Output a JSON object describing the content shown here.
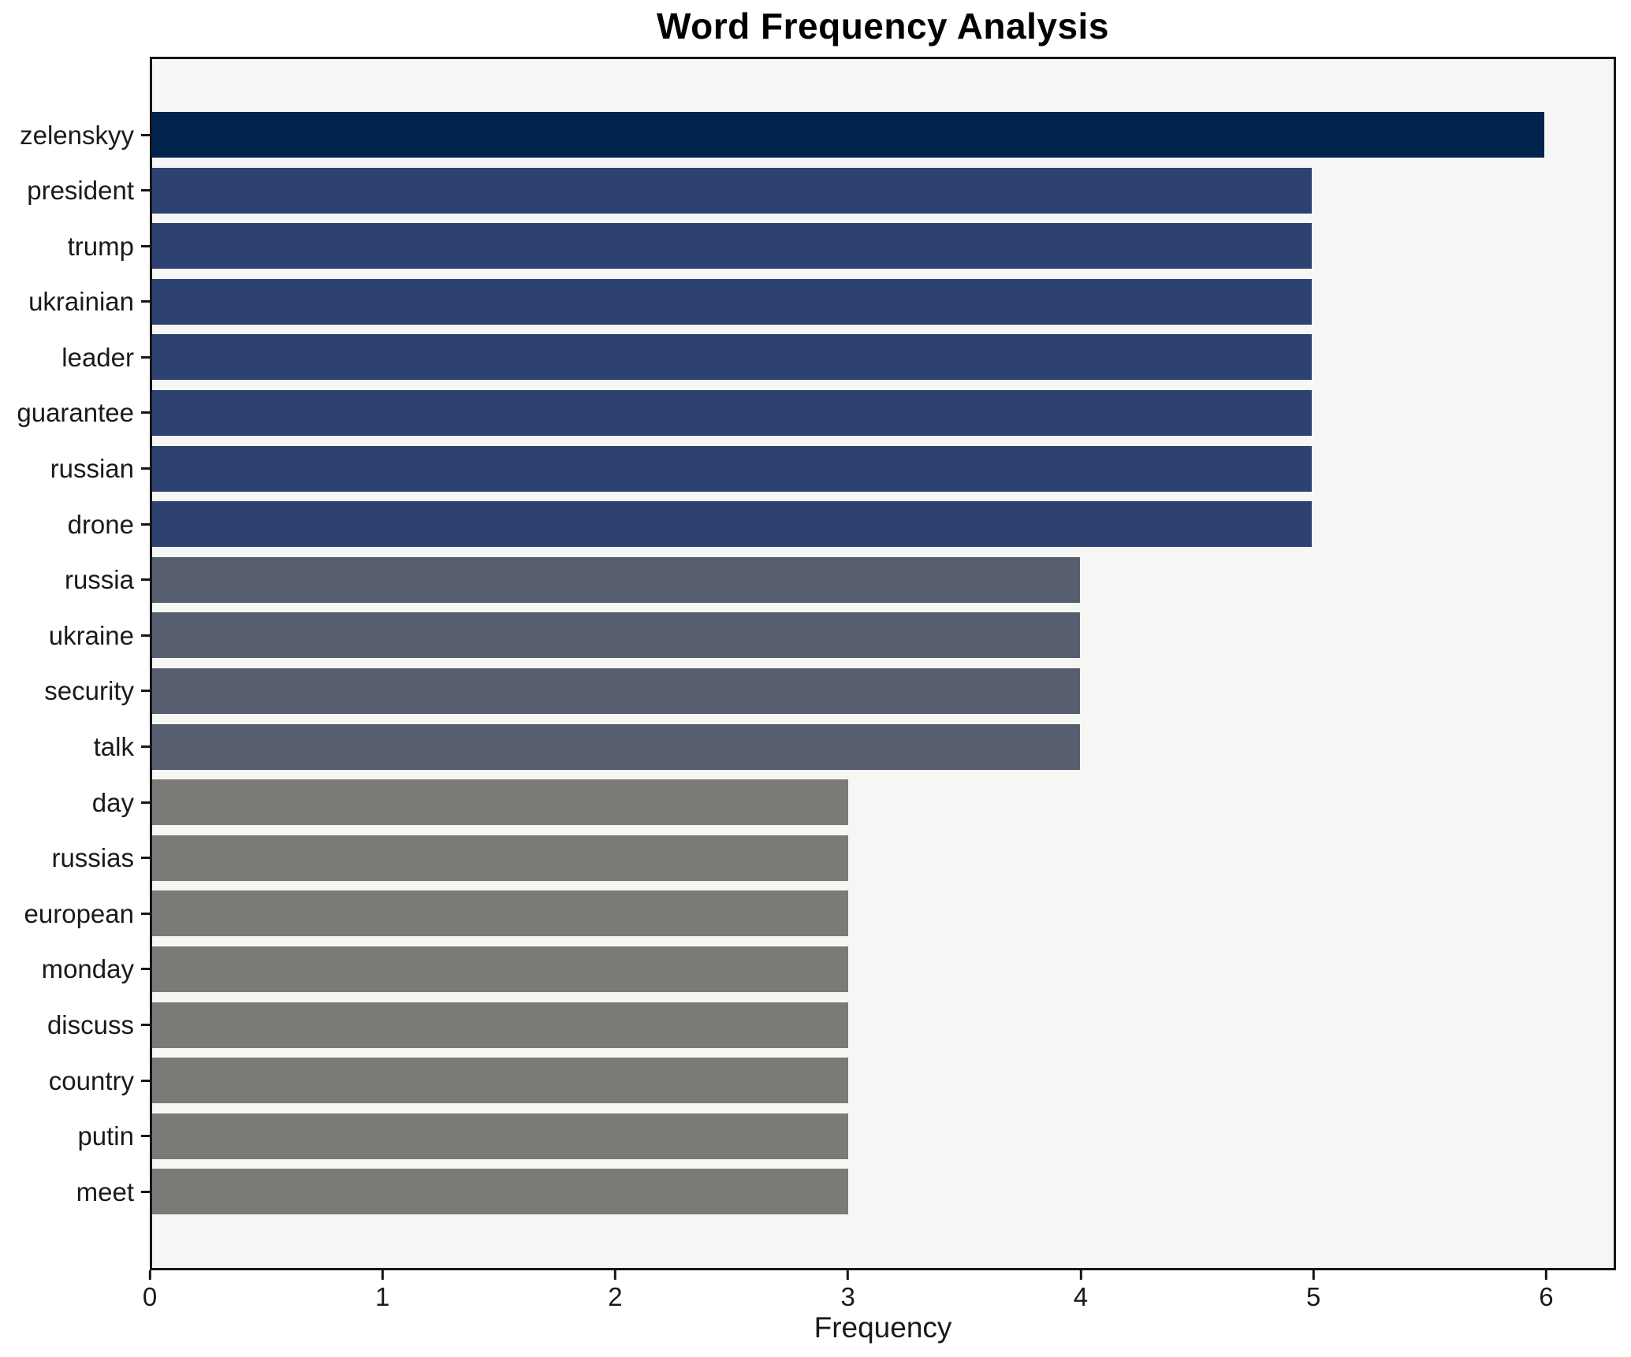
{
  "chart_data": {
    "type": "bar",
    "orientation": "horizontal",
    "title": "Word Frequency Analysis",
    "xlabel": "Frequency",
    "ylabel": "",
    "categories": [
      "zelenskyy",
      "president",
      "trump",
      "ukrainian",
      "leader",
      "guarantee",
      "russian",
      "drone",
      "russia",
      "ukraine",
      "security",
      "talk",
      "day",
      "russias",
      "european",
      "monday",
      "discuss",
      "country",
      "putin",
      "meet"
    ],
    "values": [
      6,
      5,
      5,
      5,
      5,
      5,
      5,
      5,
      4,
      4,
      4,
      4,
      3,
      3,
      3,
      3,
      3,
      3,
      3,
      3
    ],
    "xticks": [
      0,
      1,
      2,
      3,
      4,
      5,
      6
    ],
    "xlim": [
      0,
      6.3
    ],
    "grid": false,
    "legend_position": "none",
    "value_colors": {
      "6": "#02234c",
      "5": "#2d4270",
      "4": "#565e70",
      "3": "#7c7a76"
    },
    "plot_background": "#f6f6f4",
    "figure_background": "#ffffff",
    "spine_color": "#161616",
    "text_color": "#1a1a1a"
  }
}
